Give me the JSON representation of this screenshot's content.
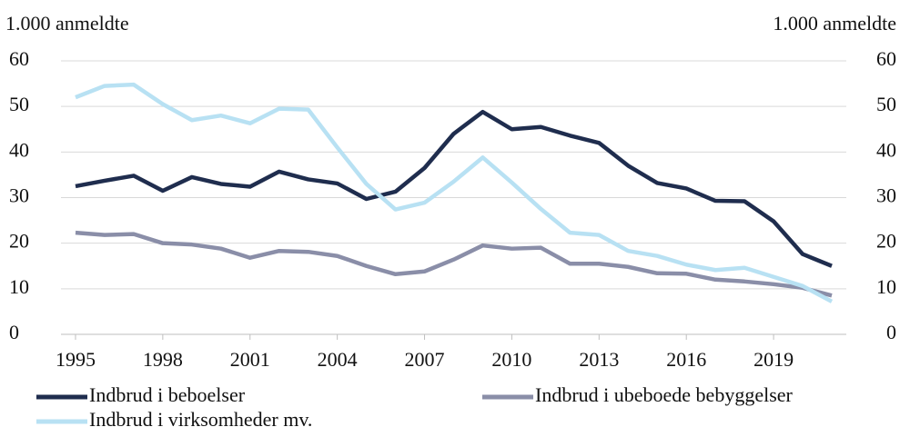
{
  "chart_data": {
    "type": "line",
    "ylabel": "1.000 anmeldte",
    "y2label": "1.000 anmeldte",
    "x": [
      1995,
      1996,
      1997,
      1998,
      1999,
      2000,
      2001,
      2002,
      2003,
      2004,
      2005,
      2006,
      2007,
      2008,
      2009,
      2010,
      2011,
      2012,
      2013,
      2014,
      2015,
      2016,
      2017,
      2018,
      2019,
      2020,
      2021
    ],
    "xlim": [
      1994.5,
      2021.5
    ],
    "xticks": [
      1995,
      1998,
      2001,
      2004,
      2007,
      2010,
      2013,
      2016,
      2019
    ],
    "ylim": [
      0,
      60
    ],
    "yticks": [
      0,
      10,
      20,
      30,
      40,
      50,
      60
    ],
    "y2lim": [
      0,
      60
    ],
    "y2ticks": [
      0,
      10,
      20,
      30,
      40,
      50,
      60
    ],
    "grid": true,
    "legend": "bottom",
    "series": [
      {
        "name": "Indbrud i beboelser",
        "color": "#1f2d4e",
        "values": [
          32.5,
          33.7,
          34.8,
          31.5,
          34.5,
          33,
          32.4,
          35.7,
          34,
          33.1,
          29.7,
          31.3,
          36.5,
          44,
          48.8,
          45,
          45.5,
          43.6,
          42,
          37,
          33.2,
          32,
          29.3,
          29.2,
          24.8,
          17.6,
          15
        ]
      },
      {
        "name": "Indbrud i ubeboede bebyggelser",
        "color": "#8a8ea8",
        "values": [
          22.3,
          21.8,
          22,
          20,
          19.7,
          18.8,
          16.8,
          18.3,
          18.1,
          17.2,
          15,
          13.2,
          13.8,
          16.4,
          19.5,
          18.8,
          19,
          15.5,
          15.5,
          14.8,
          13.4,
          13.3,
          12,
          11.6,
          11,
          10.2,
          8.5
        ]
      },
      {
        "name": "Indbrud i virksomheder mv.",
        "color": "#b8e1f3",
        "values": [
          52,
          54.5,
          54.8,
          50.5,
          47,
          48,
          46.3,
          49.5,
          49.3,
          41,
          33,
          27.4,
          28.9,
          33.5,
          38.8,
          33.3,
          27.5,
          22.3,
          21.8,
          18.3,
          17.2,
          15.3,
          14.1,
          14.6,
          12.6,
          10.6,
          7.2
        ]
      }
    ]
  }
}
